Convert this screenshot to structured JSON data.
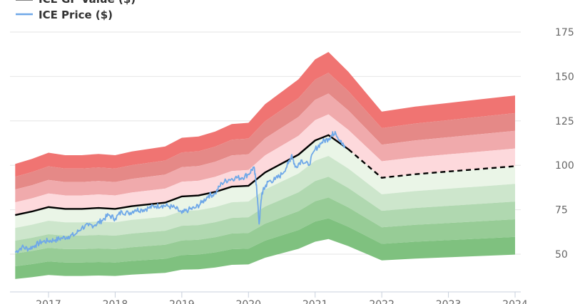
{
  "chart_data": {
    "type": "area",
    "title": "",
    "xlabel": "",
    "ylabel": "",
    "ylim": [
      30,
      180
    ],
    "y_ticks": [
      50,
      75,
      100,
      125,
      150,
      175
    ],
    "x_ticks": [
      2017,
      2018,
      2019,
      2020,
      2021,
      2022,
      2023,
      2024
    ],
    "grid": true,
    "legend_position": "top-left",
    "legend": [
      {
        "label": "ICE GF Value ($)",
        "color": "#000000"
      },
      {
        "label": "ICE Price ($)",
        "color": "#6fa8e8"
      }
    ],
    "gf_value": {
      "x": [
        2016.5,
        2016.75,
        2017.0,
        2017.25,
        2017.5,
        2017.75,
        2018.0,
        2018.25,
        2018.5,
        2018.75,
        2019.0,
        2019.25,
        2019.5,
        2019.75,
        2020.0,
        2020.25,
        2020.5,
        2020.75,
        2021.0,
        2021.2,
        2021.5,
        2022.0,
        2022.5,
        2023.0,
        2023.5,
        2024.0
      ],
      "y": [
        72,
        74,
        76.5,
        75.5,
        75.5,
        76,
        75.5,
        77,
        78,
        79,
        82.5,
        83,
        85,
        88,
        88.5,
        96,
        101,
        106,
        114,
        117,
        109,
        93,
        95,
        96.5,
        98,
        99.5
      ],
      "projected_from_x": 2021.5
    },
    "price": {
      "x": [
        2016.5,
        2016.6,
        2016.7,
        2016.8,
        2016.9,
        2017.0,
        2017.1,
        2017.2,
        2017.3,
        2017.4,
        2017.5,
        2017.6,
        2017.7,
        2017.8,
        2017.9,
        2018.0,
        2018.1,
        2018.2,
        2018.3,
        2018.4,
        2018.5,
        2018.6,
        2018.7,
        2018.8,
        2018.9,
        2019.0,
        2019.1,
        2019.2,
        2019.3,
        2019.4,
        2019.5,
        2019.6,
        2019.7,
        2019.8,
        2019.9,
        2020.0,
        2020.08,
        2020.12,
        2020.16,
        2020.2,
        2020.25,
        2020.3,
        2020.4,
        2020.5,
        2020.6,
        2020.65,
        2020.7,
        2020.8,
        2020.9,
        2021.0,
        2021.1,
        2021.2,
        2021.25,
        2021.3,
        2021.4,
        2021.45
      ],
      "y": [
        51,
        54,
        53,
        55,
        57,
        57.5,
        58,
        59,
        60,
        61,
        65,
        66,
        66.5,
        69,
        72,
        70,
        74,
        73,
        75,
        75,
        76,
        77,
        77.5,
        77,
        76,
        73,
        75,
        76,
        79,
        83,
        84,
        90,
        92,
        93,
        93,
        95,
        99,
        89,
        67,
        84,
        88,
        91,
        92,
        95,
        101,
        106,
        99,
        103,
        100,
        109,
        113,
        115,
        117,
        119,
        112,
        110
      ]
    },
    "bands": [
      {
        "lower_factor": 1.3,
        "upper_factor": 1.4,
        "color": "#f07472"
      },
      {
        "lower_factor": 1.2,
        "upper_factor": 1.3,
        "color": "#e58987"
      },
      {
        "lower_factor": 1.1,
        "upper_factor": 1.2,
        "color": "#f0aaac"
      },
      {
        "lower_factor": 1.0,
        "upper_factor": 1.1,
        "color": "#fdd9dc"
      },
      {
        "lower_factor": 0.9,
        "upper_factor": 1.0,
        "color": "#eaf5e7"
      },
      {
        "lower_factor": 0.8,
        "upper_factor": 0.9,
        "color": "#cde6cc"
      },
      {
        "lower_factor": 0.7,
        "upper_factor": 0.8,
        "color": "#b0d8b0"
      },
      {
        "lower_factor": 0.6,
        "upper_factor": 0.7,
        "color": "#97cc96"
      },
      {
        "lower_factor": 0.5,
        "upper_factor": 0.6,
        "color": "#7fc17f"
      }
    ]
  }
}
